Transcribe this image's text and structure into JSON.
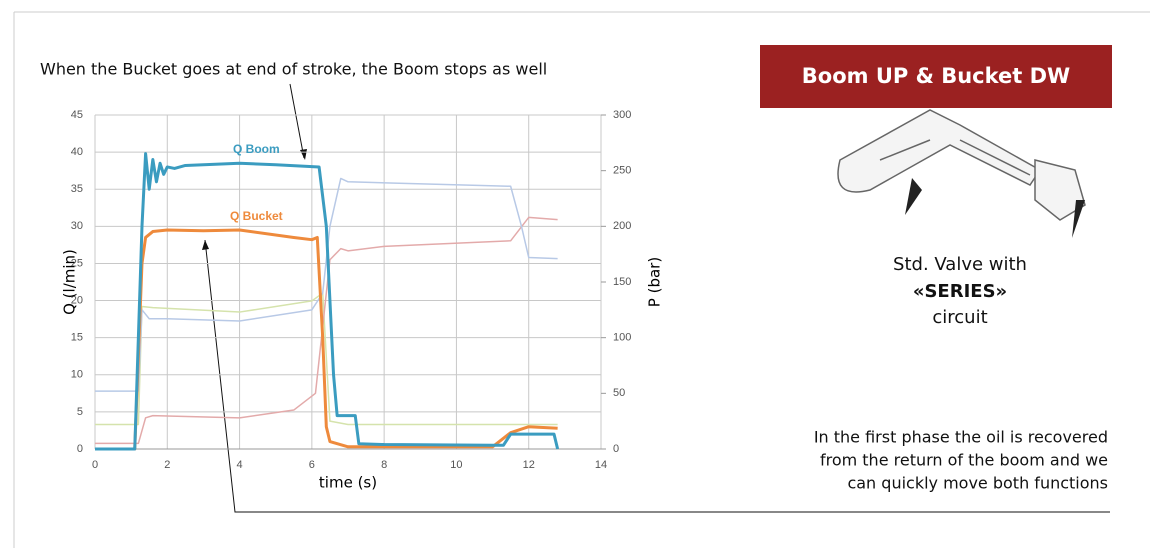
{
  "chart_data": {
    "type": "line",
    "annotation": "When the Bucket goes at end of stroke, the Boom stops as well",
    "xlabel": "time (s)",
    "ylabel": "Q (l/min)",
    "y2label": "P (bar)",
    "xlim": [
      0,
      14
    ],
    "xticks": [
      0,
      2,
      4,
      6,
      8,
      10,
      12,
      14
    ],
    "ylim": [
      0,
      45
    ],
    "yticks": [
      0,
      5,
      10,
      15,
      20,
      25,
      30,
      35,
      40,
      45
    ],
    "y2lim": [
      0,
      300
    ],
    "y2ticks": [
      0,
      50,
      100,
      150,
      200,
      250,
      300
    ],
    "grid": true,
    "series": [
      {
        "name": "Q Boom",
        "color": "#3b9cc0",
        "x": [
          0,
          1.1,
          1.3,
          1.4,
          1.5,
          1.6,
          1.7,
          1.8,
          1.9,
          2.0,
          2.2,
          2.5,
          4,
          5,
          6.2,
          6.4,
          6.6,
          6.7,
          7.2,
          7.3,
          8,
          11,
          11.3,
          11.5,
          12.7,
          12.8
        ],
        "values": [
          0,
          0,
          30,
          39.8,
          35,
          39,
          36,
          38.5,
          37,
          38,
          37.8,
          38.2,
          38.5,
          38.3,
          38,
          30,
          10,
          4.5,
          4.5,
          0.7,
          0.6,
          0.5,
          0.5,
          2,
          2,
          0
        ]
      },
      {
        "name": "Q Bucket",
        "color": "#ee8a3c",
        "x": [
          0,
          1.1,
          1.3,
          1.4,
          1.6,
          2,
          3,
          4,
          5.5,
          6,
          6.15,
          6.3,
          6.4,
          6.5,
          7,
          11,
          11.5,
          12,
          12.8
        ],
        "values": [
          0,
          0,
          25,
          28.5,
          29.3,
          29.5,
          29.4,
          29.5,
          28.5,
          28.2,
          28.5,
          15,
          3,
          1,
          0.3,
          0.3,
          2.2,
          3,
          2.8
        ]
      },
      {
        "color": "#b8c9e6",
        "axis": "y2",
        "x": [
          0,
          1.2,
          1.3,
          1.5,
          2,
          4,
          6,
          6.3,
          6.5,
          6.8,
          7,
          11.5,
          11.8,
          12,
          12.8
        ],
        "values": [
          52,
          52,
          125,
          117,
          117,
          115,
          125,
          140,
          200,
          243,
          240,
          236,
          200,
          172,
          171
        ]
      },
      {
        "color": "#e3aaaa",
        "axis": "y2",
        "x": [
          0,
          1.2,
          1.4,
          1.6,
          4,
          5.5,
          6.1,
          6.5,
          6.8,
          7,
          8,
          11.5,
          12,
          12.8
        ],
        "values": [
          5,
          5,
          28,
          30,
          28,
          35,
          50,
          170,
          180,
          178,
          182,
          187,
          208,
          206
        ]
      },
      {
        "color": "#d5e3ac",
        "axis": "y2",
        "x": [
          0,
          1.2,
          1.3,
          1.6,
          4,
          6,
          6.3,
          6.5,
          7,
          12.8
        ],
        "values": [
          22,
          22,
          128,
          127,
          123,
          133,
          140,
          25,
          22,
          22
        ]
      }
    ]
  },
  "slide": {
    "title": "Boom UP & Bucket DW",
    "caption": [
      "Std. Valve with",
      "«SERIES»",
      "circuit"
    ],
    "note": [
      "In the first phase the oil is recovered",
      "from the return of the boom and we",
      "can quickly move both functions"
    ]
  }
}
